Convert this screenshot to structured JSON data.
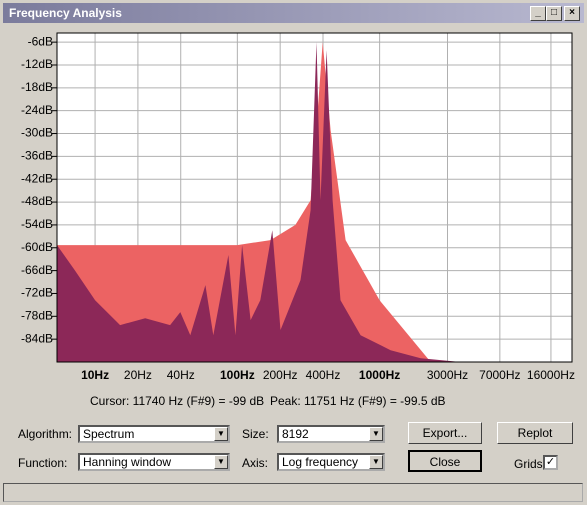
{
  "window": {
    "title": "Frequency Analysis",
    "cursor": "Cursor: 11740 Hz (F#9) = -99 dB",
    "peak": "Peak: 11751 Hz (F#9) = -99.5 dB",
    "controls": {
      "algorithm_label": "Algorithm:",
      "algorithm": "Spectrum",
      "size_label": "Size:",
      "size": "8192",
      "function_label": "Function:",
      "function": "Hanning window",
      "axis_label": "Axis:",
      "axis": "Log frequency",
      "export": "Export...",
      "replot": "Replot",
      "close": "Close",
      "grids": "Grids"
    }
  },
  "chart_data": {
    "type": "area",
    "xscale": "log",
    "grid": true,
    "xlim": [
      5.4,
      22500
    ],
    "ylim": [
      -90,
      -3.6
    ],
    "xticks": [
      {
        "value": 10,
        "label": "10Hz"
      },
      {
        "value": 20,
        "label": "20Hz"
      },
      {
        "value": 40,
        "label": "40Hz"
      },
      {
        "value": 100,
        "label": "100Hz"
      },
      {
        "value": 200,
        "label": "200Hz"
      },
      {
        "value": 400,
        "label": "400Hz"
      },
      {
        "value": 1000,
        "label": "1000Hz"
      },
      {
        "value": 3000,
        "label": "3000Hz"
      },
      {
        "value": 7000,
        "label": "7000Hz"
      },
      {
        "value": 16000,
        "label": "16000Hz"
      }
    ],
    "yticks": [
      {
        "value": -6,
        "label": "-6dB"
      },
      {
        "value": -12,
        "label": "-12dB"
      },
      {
        "value": -18,
        "label": "-18dB"
      },
      {
        "value": -24,
        "label": "-24dB"
      },
      {
        "value": -30,
        "label": "-30dB"
      },
      {
        "value": -36,
        "label": "-36dB"
      },
      {
        "value": -42,
        "label": "-42dB"
      },
      {
        "value": -48,
        "label": "-48dB"
      },
      {
        "value": -54,
        "label": "-54dB"
      },
      {
        "value": -60,
        "label": "-60dB"
      },
      {
        "value": -66,
        "label": "-66dB"
      },
      {
        "value": -72,
        "label": "-72dB"
      },
      {
        "value": -78,
        "label": "-78dB"
      },
      {
        "value": -84,
        "label": "-84dB"
      }
    ],
    "series": [
      {
        "color": "#ec6363",
        "x": [
          5.4,
          100,
          171,
          256,
          327,
          372,
          398,
          452,
          577,
          1000,
          2286
        ],
        "values": [
          -59.3,
          -59.3,
          -58,
          -54,
          -47.5,
          -21.2,
          -6,
          -29.1,
          -58,
          -73.8,
          -90
        ]
      },
      {
        "color": "#8c2858",
        "x": [
          5.4,
          7.2,
          10,
          15,
          22.5,
          33.7,
          39.7,
          46.7,
          59.6,
          67.8,
          86.5,
          96.9,
          108,
          124,
          145,
          176,
          201,
          278,
          327,
          360,
          384,
          424,
          467,
          531,
          735,
          1194,
          1945,
          3715
        ],
        "values": [
          -59.3,
          -65.9,
          -73.8,
          -80.3,
          -78.5,
          -80.3,
          -76.9,
          -83,
          -69.8,
          -83,
          -61.9,
          -83,
          -59.3,
          -79,
          -73.8,
          -55.4,
          -81.6,
          -68.5,
          -50.1,
          -6,
          -47.5,
          -8.1,
          -47.5,
          -73.8,
          -83,
          -86.9,
          -89,
          -90
        ]
      }
    ]
  }
}
